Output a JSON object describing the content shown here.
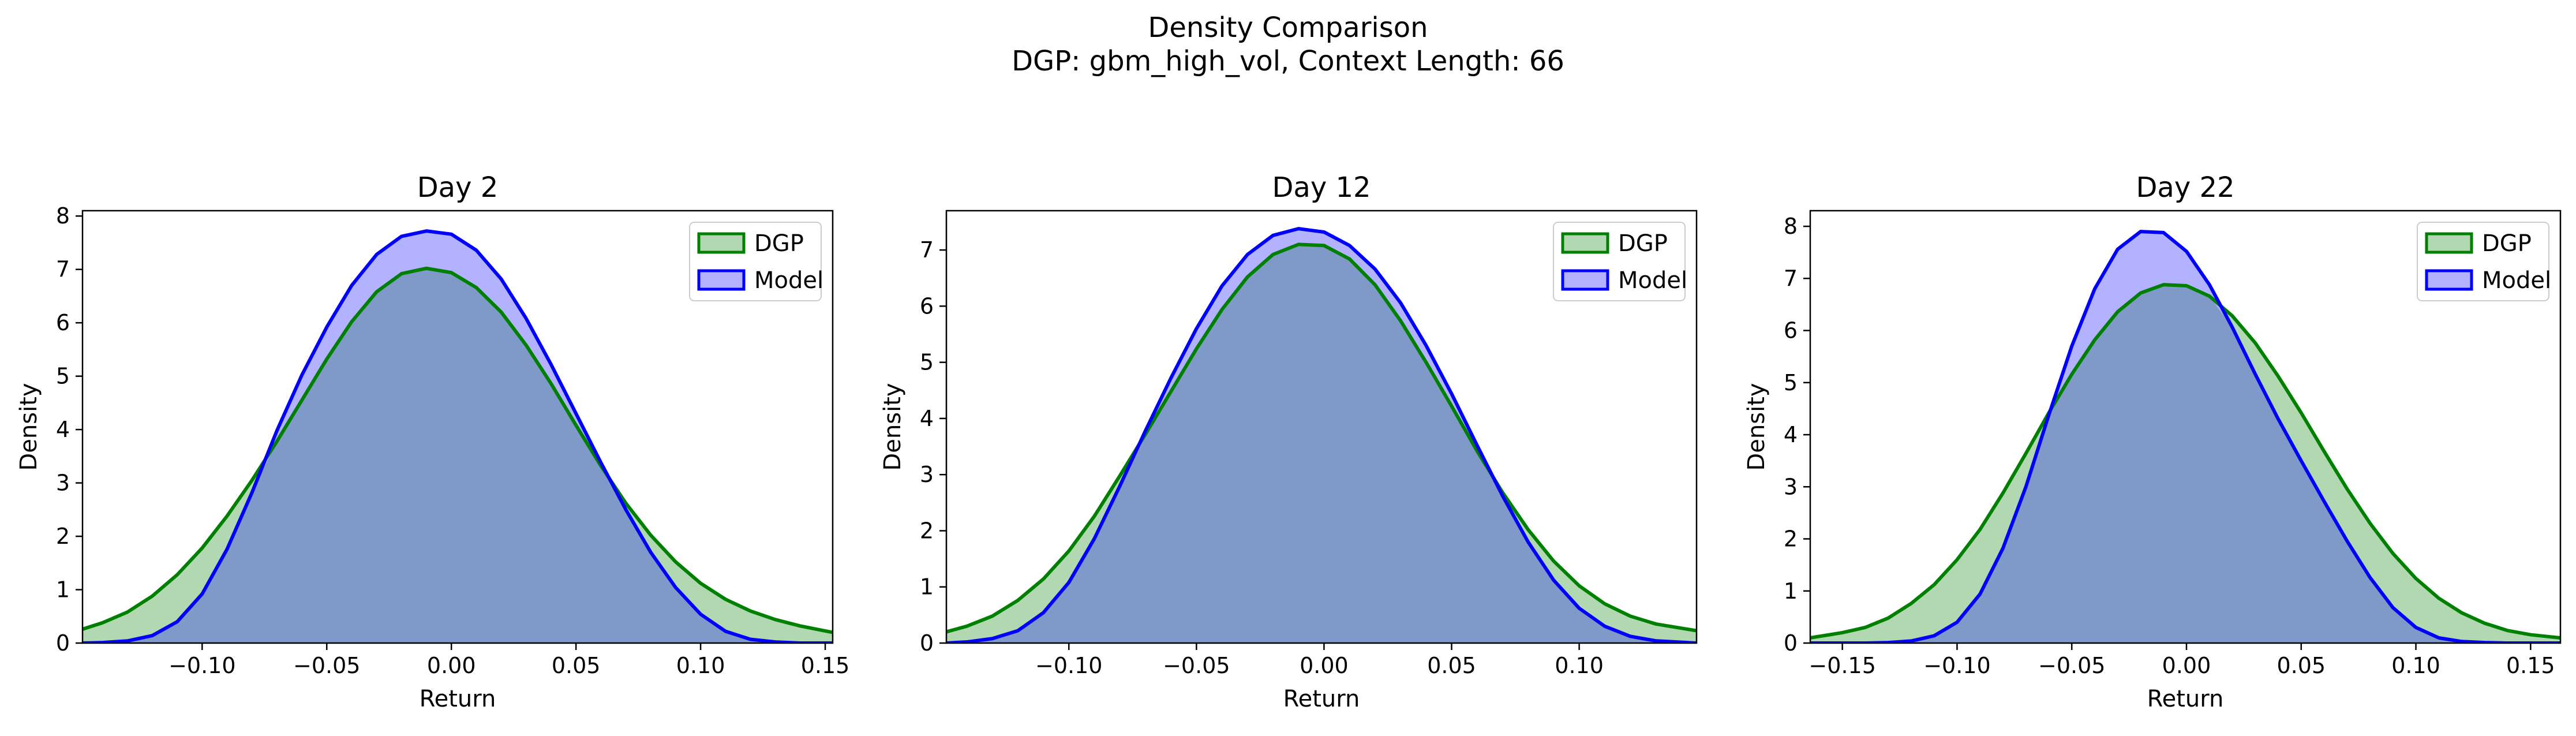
{
  "figure": {
    "title_line1": "Density Comparison",
    "title_line2": "DGP: gbm_high_vol, Context Length: 66"
  },
  "colors": {
    "dgp_line": "#008000",
    "dgp_fill": "#b2d8b2",
    "model_line": "#0000ff",
    "model_fill": "#b2b2ff",
    "overlap_fill": "#7f99c8"
  },
  "chart_data": [
    {
      "type": "area",
      "title": "Day 2",
      "xlabel": "Return",
      "ylabel": "Density",
      "xlim": [
        -0.148,
        0.153
      ],
      "ylim": [
        0,
        8.1
      ],
      "xticks": [
        -0.1,
        -0.05,
        0.0,
        0.05,
        0.1,
        0.15
      ],
      "xtick_labels": [
        "−0.10",
        "−0.05",
        "0.00",
        "0.05",
        "0.10",
        "0.15"
      ],
      "yticks": [
        0,
        1,
        2,
        3,
        4,
        5,
        6,
        7,
        8
      ],
      "legend": "top-right",
      "series": [
        {
          "name": "DGP",
          "x": [
            -0.148,
            -0.14,
            -0.13,
            -0.12,
            -0.11,
            -0.1,
            -0.09,
            -0.08,
            -0.07,
            -0.06,
            -0.05,
            -0.04,
            -0.03,
            -0.02,
            -0.01,
            0.0,
            0.01,
            0.02,
            0.03,
            0.04,
            0.05,
            0.06,
            0.07,
            0.08,
            0.09,
            0.1,
            0.11,
            0.12,
            0.13,
            0.14,
            0.153
          ],
          "y": [
            0.26,
            0.38,
            0.58,
            0.88,
            1.28,
            1.78,
            2.38,
            3.05,
            3.78,
            4.55,
            5.32,
            6.02,
            6.58,
            6.92,
            7.02,
            6.94,
            6.66,
            6.2,
            5.58,
            4.86,
            4.08,
            3.32,
            2.62,
            2.02,
            1.52,
            1.12,
            0.82,
            0.6,
            0.44,
            0.32,
            0.2
          ]
        },
        {
          "name": "Model",
          "x": [
            -0.148,
            -0.14,
            -0.13,
            -0.12,
            -0.11,
            -0.1,
            -0.09,
            -0.08,
            -0.07,
            -0.06,
            -0.05,
            -0.04,
            -0.03,
            -0.02,
            -0.01,
            0.0,
            0.01,
            0.02,
            0.03,
            0.04,
            0.05,
            0.06,
            0.07,
            0.08,
            0.09,
            0.1,
            0.11,
            0.12,
            0.13,
            0.14,
            0.153
          ],
          "y": [
            0.0,
            0.01,
            0.04,
            0.14,
            0.4,
            0.92,
            1.76,
            2.82,
            3.98,
            5.02,
            5.92,
            6.7,
            7.28,
            7.62,
            7.72,
            7.66,
            7.36,
            6.82,
            6.08,
            5.22,
            4.3,
            3.38,
            2.5,
            1.7,
            1.04,
            0.54,
            0.22,
            0.07,
            0.02,
            0.0,
            0.0
          ]
        }
      ]
    },
    {
      "type": "area",
      "title": "Day 12",
      "xlabel": "Return",
      "ylabel": "Density",
      "xlim": [
        -0.148,
        0.146
      ],
      "ylim": [
        0,
        7.7
      ],
      "xticks": [
        -0.1,
        -0.05,
        0.0,
        0.05,
        0.1
      ],
      "xtick_labels": [
        "−0.10",
        "−0.05",
        "0.00",
        "0.05",
        "0.10"
      ],
      "yticks": [
        0,
        1,
        2,
        3,
        4,
        5,
        6,
        7
      ],
      "legend": "top-right",
      "series": [
        {
          "name": "DGP",
          "x": [
            -0.148,
            -0.14,
            -0.13,
            -0.12,
            -0.11,
            -0.1,
            -0.09,
            -0.08,
            -0.07,
            -0.06,
            -0.05,
            -0.04,
            -0.03,
            -0.02,
            -0.01,
            0.0,
            0.01,
            0.02,
            0.03,
            0.04,
            0.05,
            0.06,
            0.07,
            0.08,
            0.09,
            0.1,
            0.11,
            0.12,
            0.13,
            0.146
          ],
          "y": [
            0.2,
            0.3,
            0.48,
            0.76,
            1.14,
            1.64,
            2.26,
            2.98,
            3.72,
            4.48,
            5.24,
            5.94,
            6.52,
            6.92,
            7.1,
            7.08,
            6.84,
            6.38,
            5.74,
            5.0,
            4.22,
            3.42,
            2.68,
            2.02,
            1.46,
            1.02,
            0.7,
            0.48,
            0.34,
            0.22
          ]
        },
        {
          "name": "Model",
          "x": [
            -0.148,
            -0.14,
            -0.13,
            -0.12,
            -0.11,
            -0.1,
            -0.09,
            -0.08,
            -0.07,
            -0.06,
            -0.05,
            -0.04,
            -0.03,
            -0.02,
            -0.01,
            0.0,
            0.01,
            0.02,
            0.03,
            0.04,
            0.05,
            0.06,
            0.07,
            0.08,
            0.09,
            0.1,
            0.11,
            0.12,
            0.13,
            0.146
          ],
          "y": [
            0.0,
            0.02,
            0.08,
            0.22,
            0.54,
            1.08,
            1.86,
            2.8,
            3.78,
            4.72,
            5.6,
            6.36,
            6.92,
            7.26,
            7.38,
            7.32,
            7.08,
            6.66,
            6.06,
            5.3,
            4.44,
            3.52,
            2.62,
            1.8,
            1.12,
            0.62,
            0.3,
            0.12,
            0.04,
            0.0
          ]
        }
      ]
    },
    {
      "type": "area",
      "title": "Day 22",
      "xlabel": "Return",
      "ylabel": "Density",
      "xlim": [
        -0.164,
        0.163
      ],
      "ylim": [
        0,
        8.3
      ],
      "xticks": [
        -0.15,
        -0.1,
        -0.05,
        0.0,
        0.05,
        0.1,
        0.15
      ],
      "xtick_labels": [
        "−0.15",
        "−0.10",
        "−0.05",
        "0.00",
        "0.05",
        "0.10",
        "0.15"
      ],
      "yticks": [
        0,
        1,
        2,
        3,
        4,
        5,
        6,
        7,
        8
      ],
      "legend": "top-right",
      "series": [
        {
          "name": "DGP",
          "x": [
            -0.164,
            -0.15,
            -0.14,
            -0.13,
            -0.12,
            -0.11,
            -0.1,
            -0.09,
            -0.08,
            -0.07,
            -0.06,
            -0.05,
            -0.04,
            -0.03,
            -0.02,
            -0.01,
            0.0,
            0.01,
            0.02,
            0.03,
            0.04,
            0.05,
            0.06,
            0.07,
            0.08,
            0.09,
            0.1,
            0.11,
            0.12,
            0.13,
            0.14,
            0.15,
            0.163
          ],
          "y": [
            0.1,
            0.2,
            0.3,
            0.48,
            0.76,
            1.12,
            1.6,
            2.18,
            2.88,
            3.64,
            4.42,
            5.16,
            5.82,
            6.36,
            6.72,
            6.88,
            6.86,
            6.66,
            6.28,
            5.76,
            5.12,
            4.42,
            3.68,
            2.96,
            2.3,
            1.72,
            1.24,
            0.86,
            0.58,
            0.38,
            0.24,
            0.16,
            0.1
          ]
        },
        {
          "name": "Model",
          "x": [
            -0.164,
            -0.15,
            -0.14,
            -0.13,
            -0.12,
            -0.11,
            -0.1,
            -0.09,
            -0.08,
            -0.07,
            -0.06,
            -0.05,
            -0.04,
            -0.03,
            -0.02,
            -0.01,
            0.0,
            0.01,
            0.02,
            0.03,
            0.04,
            0.05,
            0.06,
            0.07,
            0.08,
            0.09,
            0.1,
            0.11,
            0.12,
            0.13,
            0.14,
            0.15,
            0.163
          ],
          "y": [
            0.0,
            0.0,
            0.0,
            0.01,
            0.04,
            0.14,
            0.4,
            0.94,
            1.82,
            3.0,
            4.38,
            5.7,
            6.8,
            7.56,
            7.9,
            7.88,
            7.52,
            6.88,
            6.06,
            5.16,
            4.3,
            3.5,
            2.72,
            1.96,
            1.26,
            0.68,
            0.3,
            0.1,
            0.03,
            0.01,
            0.0,
            0.0,
            0.0
          ]
        }
      ]
    }
  ]
}
